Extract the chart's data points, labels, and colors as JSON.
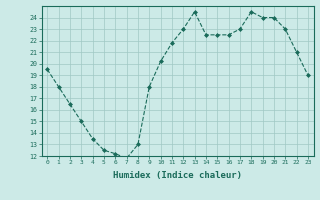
{
  "x": [
    0,
    1,
    2,
    3,
    4,
    5,
    6,
    7,
    8,
    9,
    10,
    11,
    12,
    13,
    14,
    15,
    16,
    17,
    18,
    19,
    20,
    21,
    22,
    23
  ],
  "y": [
    19.5,
    18,
    16.5,
    15,
    13.5,
    12.5,
    12.2,
    11.8,
    13,
    18,
    20.2,
    21.8,
    23,
    24.5,
    22.5,
    22.5,
    22.5,
    23,
    24.5,
    24,
    24,
    23,
    21,
    19
  ],
  "line_color": "#1a6b5a",
  "marker": "D",
  "marker_size": 2,
  "bg_color": "#cceae7",
  "grid_color": "#a0c8c4",
  "xlabel": "Humidex (Indice chaleur)",
  "ylim": [
    12,
    25
  ],
  "xlim": [
    -0.5,
    23.5
  ],
  "yticks": [
    12,
    13,
    14,
    15,
    16,
    17,
    18,
    19,
    20,
    21,
    22,
    23,
    24
  ],
  "xticks": [
    0,
    1,
    2,
    3,
    4,
    5,
    6,
    7,
    8,
    9,
    10,
    11,
    12,
    13,
    14,
    15,
    16,
    17,
    18,
    19,
    20,
    21,
    22,
    23
  ],
  "xtick_labels": [
    "0",
    "1",
    "2",
    "3",
    "4",
    "5",
    "6",
    "7",
    "8",
    "9",
    "10",
    "11",
    "12",
    "13",
    "14",
    "15",
    "16",
    "17",
    "18",
    "19",
    "20",
    "21",
    "22",
    "23"
  ]
}
